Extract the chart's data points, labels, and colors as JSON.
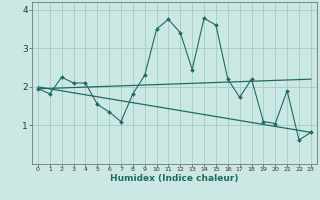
{
  "xlabel": "Humidex (Indice chaleur)",
  "xlim": [
    -0.5,
    23.5
  ],
  "ylim": [
    0,
    4.2
  ],
  "yticks": [
    1,
    2,
    3,
    4
  ],
  "xticks": [
    0,
    1,
    2,
    3,
    4,
    5,
    6,
    7,
    8,
    9,
    10,
    11,
    12,
    13,
    14,
    15,
    16,
    17,
    18,
    19,
    20,
    21,
    22,
    23
  ],
  "bg_color": "#cce8e4",
  "grid_color": "#aacfcb",
  "line_color": "#1e6b61",
  "series1_x": [
    0,
    1,
    2,
    3,
    4,
    5,
    6,
    7,
    8,
    9,
    10,
    11,
    12,
    13,
    14,
    15,
    16,
    17,
    18,
    19,
    20,
    21,
    22,
    23
  ],
  "series1_y": [
    1.95,
    1.82,
    2.25,
    2.1,
    2.1,
    1.55,
    1.35,
    1.1,
    1.82,
    2.3,
    3.5,
    3.75,
    3.4,
    2.45,
    3.78,
    3.6,
    2.2,
    1.73,
    2.2,
    1.1,
    1.05,
    1.9,
    0.62,
    0.82
  ],
  "trend1_x": [
    0,
    23
  ],
  "trend1_y": [
    1.95,
    2.2
  ],
  "trend2_x": [
    0,
    23
  ],
  "trend2_y": [
    2.0,
    0.82
  ]
}
